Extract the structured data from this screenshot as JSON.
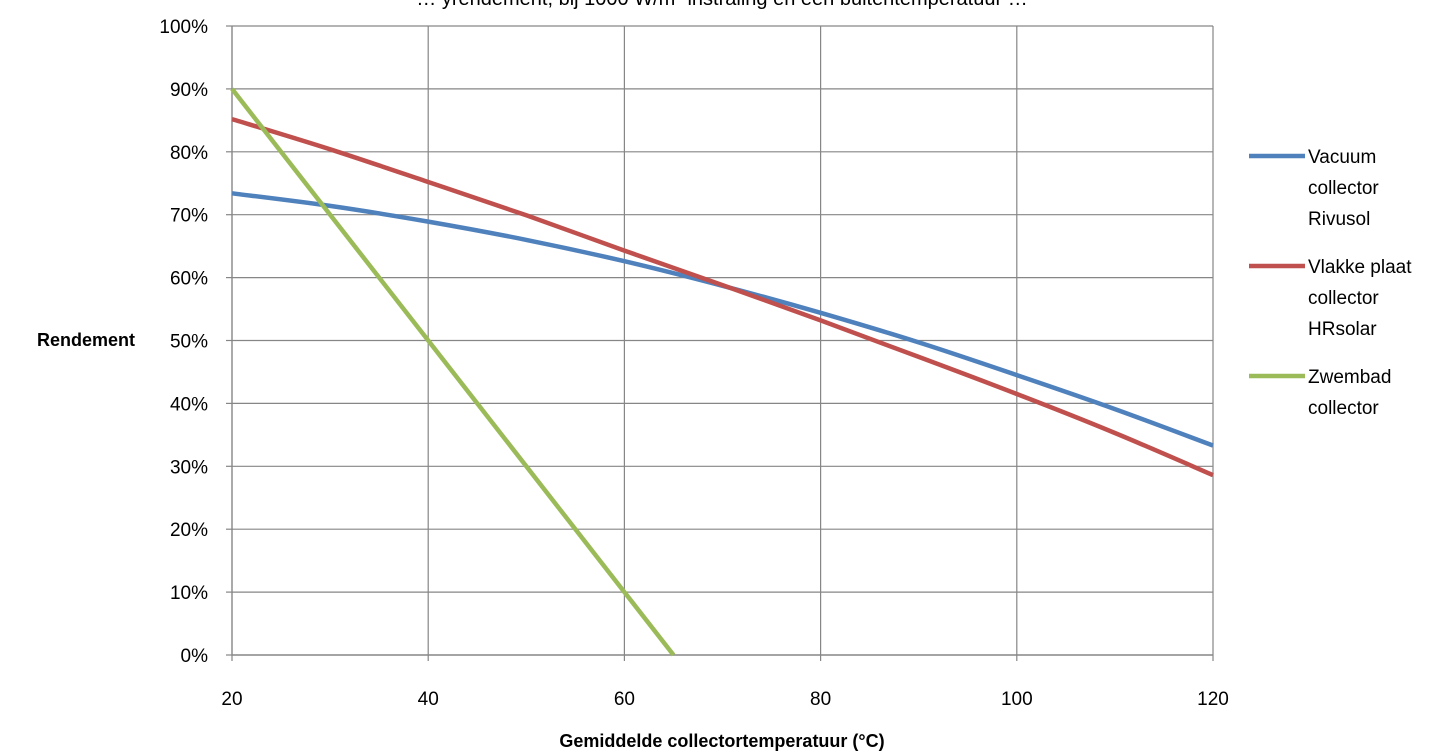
{
  "chart_data": {
    "type": "line",
    "title": "… yrendement, bij 1000 W/m² instraling en een buitentemperatuur …",
    "xlabel": "Gemiddelde collectortemperatuur (°C)",
    "ylabel": "Rendement",
    "xlim": [
      20,
      120
    ],
    "ylim": [
      0,
      1
    ],
    "x_ticks": [
      "20",
      "40",
      "60",
      "80",
      "100",
      "120"
    ],
    "y_ticks": [
      "0%",
      "10%",
      "20%",
      "30%",
      "40%",
      "50%",
      "60%",
      "70%",
      "80%",
      "90%",
      "100%"
    ],
    "grid": true,
    "legend_position": "right",
    "series": [
      {
        "name": "Vacuum collector Rivusol",
        "legend_lines": [
          "Vacuum",
          "collector",
          "Rivusol"
        ],
        "color": "#4F81BD",
        "points": [
          [
            20,
            0.734
          ],
          [
            30,
            0.714
          ],
          [
            40,
            0.689
          ],
          [
            50,
            0.66
          ],
          [
            60,
            0.626
          ],
          [
            70,
            0.587
          ],
          [
            80,
            0.544
          ],
          [
            90,
            0.497
          ],
          [
            100,
            0.445
          ],
          [
            110,
            0.391
          ],
          [
            120,
            0.333
          ]
        ]
      },
      {
        "name": "Vlakke plaat collector HRsolar",
        "legend_lines": [
          "Vlakke plaat",
          "collector",
          "HRsolar"
        ],
        "color": "#C0504D",
        "points": [
          [
            20,
            0.852
          ],
          [
            30,
            0.804
          ],
          [
            40,
            0.752
          ],
          [
            50,
            0.699
          ],
          [
            60,
            0.643
          ],
          [
            70,
            0.588
          ],
          [
            80,
            0.532
          ],
          [
            90,
            0.474
          ],
          [
            100,
            0.415
          ],
          [
            110,
            0.353
          ],
          [
            120,
            0.286
          ]
        ]
      },
      {
        "name": "Zwembad collector",
        "legend_lines": [
          "Zwembad",
          "collector"
        ],
        "color": "#9BBB59",
        "points": [
          [
            20,
            0.9
          ],
          [
            40,
            0.5
          ],
          [
            60,
            0.1
          ],
          [
            65,
            0.0
          ]
        ]
      }
    ]
  }
}
